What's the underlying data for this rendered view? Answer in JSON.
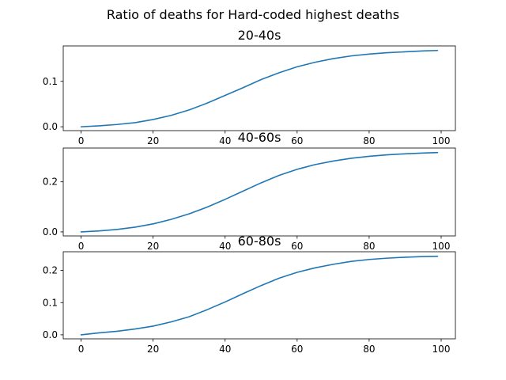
{
  "figure": {
    "title": "Ratio of deaths for Hard-coded highest deaths"
  },
  "chart_data": [
    {
      "type": "line",
      "title": "20-40s",
      "xlabel": "",
      "ylabel": "",
      "xlim": [
        -4.95,
        103.95
      ],
      "ylim": [
        -0.0085,
        0.178
      ],
      "xticks": [
        0,
        20,
        40,
        60,
        80,
        100
      ],
      "xtick_labels": [
        "0",
        "20",
        "40",
        "60",
        "80",
        "100"
      ],
      "yticks": [
        0.0,
        0.1
      ],
      "ytick_labels": [
        "0.0",
        "0.1"
      ],
      "grid": false,
      "series": [
        {
          "color": "#1f77b4",
          "x": [
            0,
            5,
            10,
            15,
            20,
            25,
            30,
            35,
            40,
            45,
            50,
            55,
            60,
            65,
            70,
            75,
            80,
            85,
            90,
            95,
            99
          ],
          "y": [
            0.0,
            0.002,
            0.005,
            0.009,
            0.016,
            0.025,
            0.037,
            0.052,
            0.069,
            0.086,
            0.104,
            0.119,
            0.132,
            0.142,
            0.15,
            0.156,
            0.16,
            0.163,
            0.165,
            0.167,
            0.168
          ]
        }
      ]
    },
    {
      "type": "line",
      "title": "40-60s",
      "xlabel": "",
      "ylabel": "",
      "xlim": [
        -4.95,
        103.95
      ],
      "ylim": [
        -0.016,
        0.335
      ],
      "xticks": [
        0,
        20,
        40,
        60,
        80,
        100
      ],
      "xtick_labels": [
        "0",
        "20",
        "40",
        "60",
        "80",
        "100"
      ],
      "yticks": [
        0.0,
        0.2
      ],
      "ytick_labels": [
        "0.0",
        "0.2"
      ],
      "grid": false,
      "series": [
        {
          "color": "#1f77b4",
          "x": [
            0,
            5,
            10,
            15,
            20,
            25,
            30,
            35,
            40,
            45,
            50,
            55,
            60,
            65,
            70,
            75,
            80,
            85,
            90,
            95,
            99
          ],
          "y": [
            0.0,
            0.004,
            0.01,
            0.019,
            0.032,
            0.05,
            0.072,
            0.099,
            0.13,
            0.163,
            0.196,
            0.226,
            0.25,
            0.269,
            0.283,
            0.294,
            0.302,
            0.308,
            0.312,
            0.315,
            0.317
          ]
        }
      ]
    },
    {
      "type": "line",
      "title": "60-80s",
      "xlabel": "",
      "ylabel": "",
      "xlim": [
        -4.95,
        103.95
      ],
      "ylim": [
        -0.0125,
        0.258
      ],
      "xticks": [
        0,
        20,
        40,
        60,
        80,
        100
      ],
      "xtick_labels": [
        "0",
        "20",
        "40",
        "60",
        "80",
        "100"
      ],
      "yticks": [
        0.0,
        0.1,
        0.2
      ],
      "ytick_labels": [
        "0.0",
        "0.1",
        "0.2"
      ],
      "grid": false,
      "series": [
        {
          "color": "#1f77b4",
          "x": [
            0,
            5,
            10,
            15,
            20,
            25,
            30,
            35,
            40,
            45,
            50,
            55,
            60,
            65,
            70,
            75,
            80,
            85,
            90,
            95,
            99
          ],
          "y": [
            0.0,
            0.006,
            0.011,
            0.018,
            0.027,
            0.04,
            0.056,
            0.078,
            0.102,
            0.128,
            0.153,
            0.176,
            0.194,
            0.208,
            0.219,
            0.228,
            0.234,
            0.238,
            0.241,
            0.243,
            0.244
          ]
        }
      ]
    }
  ]
}
